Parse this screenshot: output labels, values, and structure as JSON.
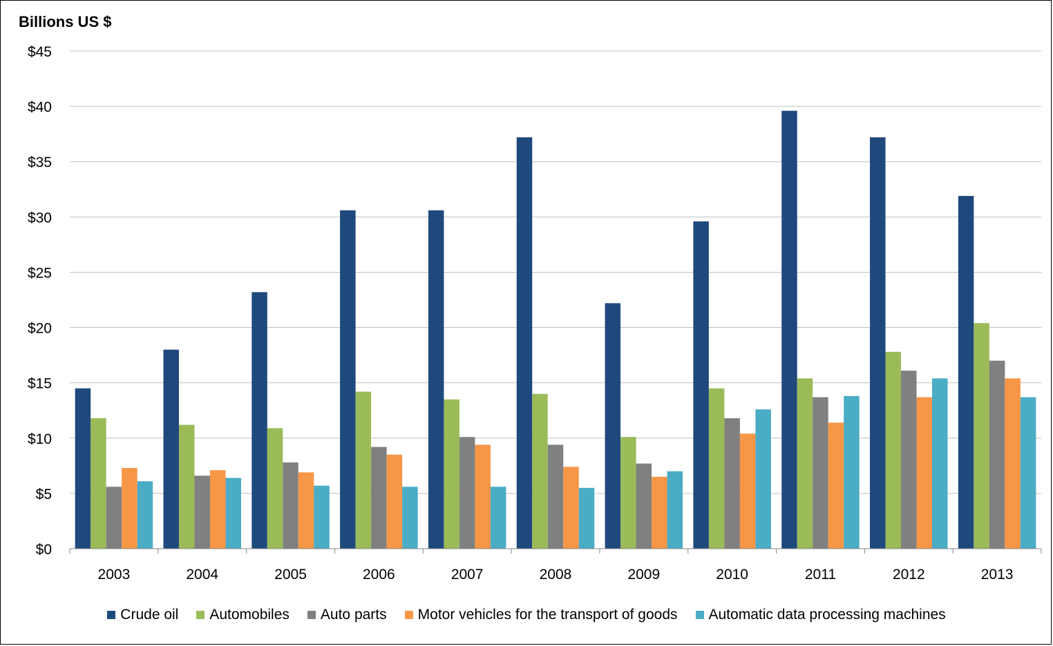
{
  "chart_data": {
    "type": "bar",
    "title": "",
    "xlabel": "",
    "ylabel": "Billions US $",
    "ylim": [
      0,
      45
    ],
    "yticks": [
      0,
      5,
      10,
      15,
      20,
      25,
      30,
      35,
      40,
      45
    ],
    "ytick_labels": [
      "$0",
      "$5",
      "$10",
      "$15",
      "$20",
      "$25",
      "$30",
      "$35",
      "$40",
      "$45"
    ],
    "grid": true,
    "legend_position": "bottom",
    "categories": [
      "2003",
      "2004",
      "2005",
      "2006",
      "2007",
      "2008",
      "2009",
      "2010",
      "2011",
      "2012",
      "2013"
    ],
    "series": [
      {
        "name": "Crude oil",
        "color": "#1F497D",
        "values": [
          14.5,
          18.0,
          23.2,
          30.6,
          30.6,
          37.2,
          22.2,
          29.6,
          39.6,
          37.2,
          31.9
        ]
      },
      {
        "name": "Automobiles",
        "color": "#9BBB59",
        "values": [
          11.8,
          11.2,
          10.9,
          14.2,
          13.5,
          14.0,
          10.1,
          14.5,
          15.4,
          17.8,
          20.4
        ]
      },
      {
        "name": "Auto parts",
        "color": "#808080",
        "values": [
          5.6,
          6.6,
          7.8,
          9.2,
          10.1,
          9.4,
          7.7,
          11.8,
          13.7,
          16.1,
          17.0
        ]
      },
      {
        "name": "Motor vehicles for the transport of goods",
        "color": "#F79646",
        "values": [
          7.3,
          7.1,
          6.9,
          8.5,
          9.4,
          7.4,
          6.5,
          10.4,
          11.4,
          13.7,
          15.4
        ]
      },
      {
        "name": "Automatic data processing machines",
        "color": "#4BACC6",
        "values": [
          6.1,
          6.4,
          5.7,
          5.6,
          5.6,
          5.5,
          7.0,
          12.6,
          13.8,
          15.4,
          13.7
        ]
      }
    ]
  }
}
